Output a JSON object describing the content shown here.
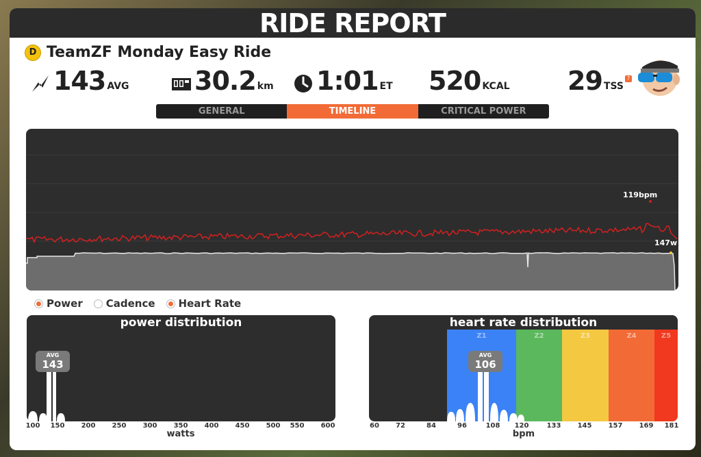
{
  "header": {
    "title": "RIDE REPORT"
  },
  "ride": {
    "badge": "D",
    "name": "TeamZF Monday Easy Ride"
  },
  "stats": {
    "power": {
      "value": "143",
      "unit": "AVG"
    },
    "distance": {
      "value": "30.2",
      "unit": "km"
    },
    "time": {
      "value": "1:01",
      "unit": "ET"
    },
    "energy": {
      "value": "520",
      "unit": "KCAL"
    },
    "tss": {
      "value": "29",
      "unit": "TSS",
      "help": "?"
    }
  },
  "tabs": [
    {
      "label": "GENERAL",
      "active": false
    },
    {
      "label": "TIMELINE",
      "active": true
    },
    {
      "label": "CRITICAL POWER",
      "active": false
    }
  ],
  "timeline": {
    "hr_label": "119bpm",
    "power_label": "147w"
  },
  "legend": [
    {
      "label": "Power",
      "checked": true
    },
    {
      "label": "Cadence",
      "checked": false
    },
    {
      "label": "Heart Rate",
      "checked": true
    }
  ],
  "power_distribution": {
    "title": "power distribution",
    "avg_label": "AVG",
    "avg_value": "143",
    "axis_ticks": [
      "100",
      "150",
      "200",
      "250",
      "300",
      "350",
      "400",
      "450",
      "500",
      "550",
      "600"
    ],
    "axis_title": "watts"
  },
  "hr_distribution": {
    "title": "heart rate distribution",
    "avg_label": "AVG",
    "avg_value": "106",
    "zones": [
      {
        "label": "Z1",
        "color": "#3b82f6"
      },
      {
        "label": "Z2",
        "color": "#5cb85c"
      },
      {
        "label": "Z3",
        "color": "#f5c842"
      },
      {
        "label": "Z4",
        "color": "#f26b36"
      },
      {
        "label": "Z5",
        "color": "#f0391e"
      }
    ],
    "axis_ticks": [
      "60",
      "72",
      "84",
      "96",
      "108",
      "120",
      "133",
      "145",
      "157",
      "169",
      "181"
    ],
    "axis_title": "bpm"
  },
  "colors": {
    "accent": "#f26b36",
    "hr_line": "#d42020",
    "panel_dark": "#2d2d2d"
  }
}
